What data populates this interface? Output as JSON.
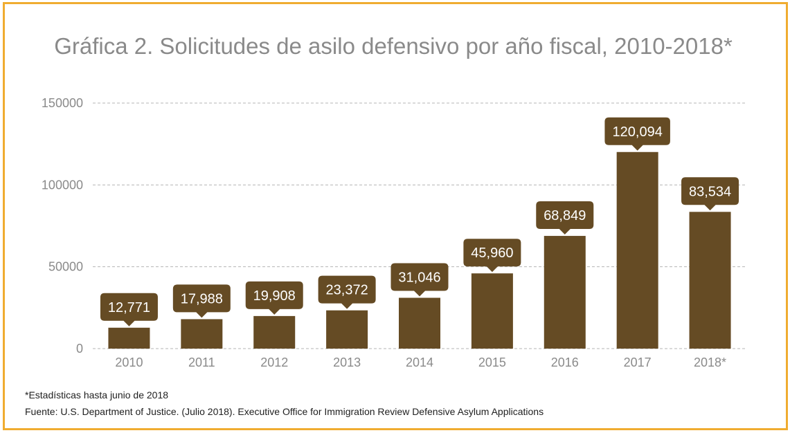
{
  "colors": {
    "border": "#f0ac30",
    "bar": "#654b24",
    "label_bg": "#654b24",
    "label_text": "#ffffff",
    "axis_text": "#8a8a8a",
    "grid": "#b4b4b4"
  },
  "chart_data": {
    "type": "bar",
    "title": "Gráfica 2. Solicitudes de asilo defensivo por año fiscal, 2010-2018*",
    "categories": [
      "2010",
      "2011",
      "2012",
      "2013",
      "2014",
      "2015",
      "2016",
      "2017",
      "2018*"
    ],
    "values": [
      12771,
      17988,
      19908,
      23372,
      31046,
      45960,
      68849,
      120094,
      83534
    ],
    "data_labels": [
      "12,771",
      "17,988",
      "19,908",
      "23,372",
      "31,046",
      "45,960",
      "68,849",
      "120,094",
      "83,534"
    ],
    "yticks": [
      0,
      50000,
      100000,
      150000
    ],
    "ytick_labels": [
      "0",
      "50000",
      "100000",
      "150000"
    ],
    "ylim": [
      0,
      150000
    ],
    "xlabel": "",
    "ylabel": "",
    "grid": true,
    "legend": "none"
  },
  "notes": {
    "footnote": "*Estadísticas hasta junio de 2018",
    "source": "Fuente: U.S. Department of Justice. (Julio 2018). Executive Office for Immigration Review Defensive Asylum Applications"
  }
}
